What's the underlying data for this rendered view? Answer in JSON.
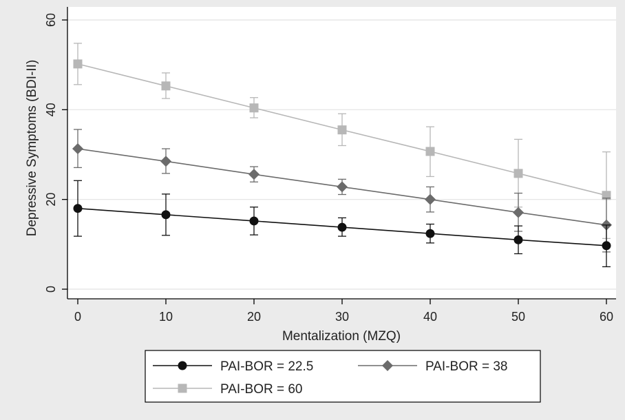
{
  "chart_data": {
    "type": "line",
    "title": "",
    "xlabel": "Mentalization (MZQ)",
    "ylabel": "Depressive Symptoms (BDI-II)",
    "x": [
      0,
      10,
      20,
      30,
      40,
      50,
      60
    ],
    "xlim": [
      0,
      60
    ],
    "ylim": [
      0,
      60
    ],
    "xticks": [
      "0",
      "10",
      "20",
      "30",
      "40",
      "50",
      "60"
    ],
    "yticks": [
      "0",
      "20",
      "40",
      "60"
    ],
    "grid": true,
    "legend_position": "bottom",
    "error_bars": true,
    "series": [
      {
        "name": "PAI-BOR = 22.5",
        "color": "#111111",
        "marker": "circle",
        "values": [
          18.0,
          16.6,
          15.2,
          13.8,
          12.4,
          11.0,
          9.7
        ],
        "lower": [
          11.8,
          12.0,
          12.1,
          11.8,
          10.3,
          7.9,
          5.0
        ],
        "upper": [
          24.2,
          21.2,
          18.3,
          15.9,
          14.5,
          14.1,
          14.3
        ]
      },
      {
        "name": "PAI-BOR = 38",
        "color": "#6b6b6b",
        "marker": "diamond",
        "values": [
          31.3,
          28.5,
          25.6,
          22.8,
          20.0,
          17.1,
          14.3
        ],
        "lower": [
          27.1,
          25.8,
          23.9,
          21.1,
          17.2,
          12.9,
          8.3
        ],
        "upper": [
          35.6,
          31.3,
          27.3,
          24.5,
          22.8,
          21.4,
          20.3
        ]
      },
      {
        "name": "PAI-BOR = 60",
        "color": "#b7b7b7",
        "marker": "square",
        "values": [
          50.2,
          45.3,
          40.4,
          35.5,
          30.7,
          25.8,
          20.9
        ],
        "lower": [
          45.6,
          42.5,
          38.2,
          32.0,
          25.1,
          18.3,
          11.3
        ],
        "upper": [
          54.8,
          48.2,
          42.7,
          39.1,
          36.2,
          33.4,
          30.6
        ]
      }
    ]
  }
}
